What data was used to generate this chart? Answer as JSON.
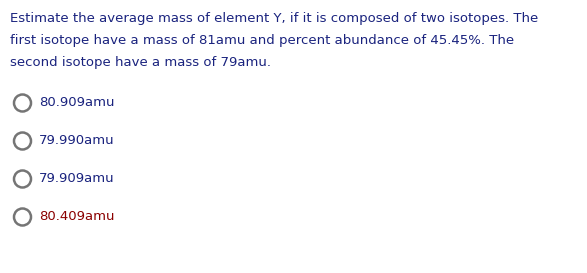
{
  "question_text": "Estimate the average mass of element Y, if it is composed of two isotopes. The\nfirst isotope have a mass of 81amu and percent abundance of 45.45%. The\nsecond isotope have a mass of 79amu.",
  "options": [
    "80.909amu",
    "79.990amu",
    "79.909amu",
    "80.409amu"
  ],
  "option_colors": [
    "#1a237e",
    "#1a237e",
    "#1a237e",
    "#8B0000"
  ],
  "question_color": "#1a237e",
  "background_color": "#ffffff",
  "question_fontsize": 9.5,
  "option_fontsize": 9.5,
  "circle_color": "#757575",
  "fig_width": 5.87,
  "fig_height": 2.73,
  "dpi": 100
}
